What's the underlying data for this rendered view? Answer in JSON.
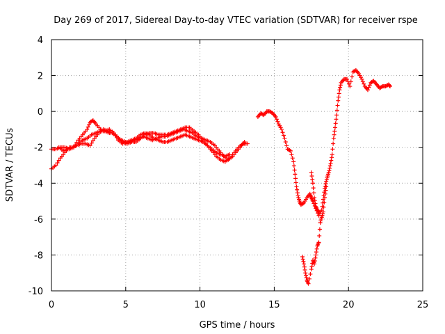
{
  "chart_data": {
    "type": "scatter",
    "title": "Day 269 of 2017, Sidereal Day-to-day VTEC variation (SDTVAR) for receiver rspe",
    "xlabel": "GPS time / hours",
    "ylabel": "SDTVAR / TECUs",
    "xlim": [
      0,
      25
    ],
    "ylim": [
      -10,
      4
    ],
    "xticks": [
      0,
      5,
      10,
      15,
      20,
      25
    ],
    "yticks": [
      -10,
      -8,
      -6,
      -4,
      -2,
      0,
      2,
      4
    ],
    "grid": true,
    "marker": "plus",
    "color": "#ff0000",
    "series": [
      {
        "segments": [
          [
            [
              0.0,
              -3.2
            ],
            [
              0.3,
              -3.0
            ],
            [
              0.6,
              -2.6
            ],
            [
              0.9,
              -2.3
            ],
            [
              1.2,
              -2.0
            ],
            [
              1.5,
              -2.0
            ],
            [
              1.8,
              -1.8
            ],
            [
              2.1,
              -1.6
            ],
            [
              2.4,
              -1.5
            ],
            [
              2.7,
              -1.3
            ],
            [
              3.0,
              -1.2
            ],
            [
              3.3,
              -1.1
            ],
            [
              3.6,
              -1.1
            ],
            [
              3.9,
              -1.2
            ],
            [
              4.2,
              -1.2
            ],
            [
              4.5,
              -1.5
            ],
            [
              4.8,
              -1.7
            ],
            [
              5.1,
              -1.8
            ],
            [
              5.4,
              -1.7
            ],
            [
              5.7,
              -1.7
            ],
            [
              6.0,
              -1.5
            ],
            [
              6.3,
              -1.3
            ],
            [
              6.6,
              -1.2
            ],
            [
              6.9,
              -1.2
            ],
            [
              7.2,
              -1.3
            ],
            [
              7.5,
              -1.3
            ],
            [
              7.8,
              -1.3
            ],
            [
              8.1,
              -1.2
            ],
            [
              8.4,
              -1.1
            ],
            [
              8.7,
              -1.0
            ],
            [
              9.0,
              -0.9
            ],
            [
              9.3,
              -0.9
            ],
            [
              9.6,
              -1.1
            ],
            [
              9.9,
              -1.3
            ],
            [
              10.2,
              -1.6
            ],
            [
              10.5,
              -1.9
            ],
            [
              10.8,
              -2.2
            ],
            [
              11.1,
              -2.5
            ],
            [
              11.4,
              -2.7
            ],
            [
              11.7,
              -2.8
            ],
            [
              12.0,
              -2.6
            ],
            [
              12.3,
              -2.3
            ],
            [
              12.6,
              -2.0
            ],
            [
              12.9,
              -1.8
            ],
            [
              13.2,
              -1.8
            ]
          ],
          [
            [
              0.0,
              -2.1
            ],
            [
              0.3,
              -2.1
            ],
            [
              0.6,
              -2.0
            ],
            [
              0.9,
              -2.0
            ],
            [
              1.2,
              -2.1
            ],
            [
              1.5,
              -2.0
            ],
            [
              1.8,
              -1.6
            ],
            [
              2.1,
              -1.3
            ],
            [
              2.4,
              -1.0
            ],
            [
              2.6,
              -0.6
            ],
            [
              2.8,
              -0.5
            ],
            [
              3.0,
              -0.7
            ],
            [
              3.3,
              -1.0
            ],
            [
              3.6,
              -1.1
            ],
            [
              3.9,
              -1.0
            ],
            [
              4.2,
              -1.2
            ],
            [
              4.5,
              -1.6
            ],
            [
              4.8,
              -1.8
            ],
            [
              5.1,
              -1.7
            ],
            [
              5.4,
              -1.6
            ],
            [
              5.7,
              -1.5
            ],
            [
              6.0,
              -1.3
            ],
            [
              6.3,
              -1.2
            ],
            [
              6.6,
              -1.3
            ],
            [
              6.9,
              -1.5
            ],
            [
              7.2,
              -1.6
            ],
            [
              7.5,
              -1.7
            ],
            [
              7.8,
              -1.7
            ],
            [
              8.1,
              -1.6
            ],
            [
              8.4,
              -1.5
            ],
            [
              8.7,
              -1.4
            ],
            [
              9.0,
              -1.3
            ],
            [
              9.3,
              -1.4
            ],
            [
              9.6,
              -1.5
            ],
            [
              9.9,
              -1.6
            ],
            [
              10.2,
              -1.7
            ],
            [
              10.5,
              -1.9
            ],
            [
              10.8,
              -2.1
            ],
            [
              11.1,
              -2.3
            ],
            [
              11.4,
              -2.4
            ],
            [
              11.7,
              -2.5
            ],
            [
              12.0,
              -2.4
            ]
          ],
          [
            [
              0.5,
              -2.0
            ],
            [
              0.8,
              -2.2
            ],
            [
              1.1,
              -2.1
            ],
            [
              1.4,
              -2.0
            ],
            [
              1.7,
              -1.9
            ],
            [
              2.0,
              -1.8
            ],
            [
              2.3,
              -1.8
            ],
            [
              2.6,
              -1.9
            ],
            [
              2.9,
              -1.5
            ],
            [
              3.2,
              -1.2
            ],
            [
              3.5,
              -1.0
            ],
            [
              3.8,
              -1.1
            ],
            [
              4.1,
              -1.2
            ],
            [
              4.4,
              -1.4
            ],
            [
              4.7,
              -1.6
            ],
            [
              5.0,
              -1.7
            ],
            [
              5.3,
              -1.7
            ],
            [
              5.6,
              -1.6
            ],
            [
              5.9,
              -1.5
            ],
            [
              6.2,
              -1.4
            ],
            [
              6.5,
              -1.5
            ],
            [
              6.8,
              -1.6
            ],
            [
              7.1,
              -1.5
            ],
            [
              7.4,
              -1.4
            ],
            [
              7.7,
              -1.4
            ],
            [
              8.0,
              -1.3
            ],
            [
              8.3,
              -1.2
            ],
            [
              8.6,
              -1.1
            ],
            [
              8.9,
              -1.0
            ],
            [
              9.2,
              -1.1
            ],
            [
              9.5,
              -1.2
            ],
            [
              9.8,
              -1.4
            ],
            [
              10.1,
              -1.5
            ],
            [
              10.4,
              -1.6
            ],
            [
              10.7,
              -1.7
            ],
            [
              11.0,
              -1.9
            ],
            [
              11.3,
              -2.2
            ],
            [
              11.6,
              -2.5
            ],
            [
              11.9,
              -2.7
            ],
            [
              12.2,
              -2.5
            ],
            [
              12.5,
              -2.2
            ],
            [
              12.8,
              -1.9
            ],
            [
              13.0,
              -1.7
            ]
          ],
          [
            [
              13.9,
              -0.3
            ],
            [
              14.1,
              -0.1
            ],
            [
              14.3,
              -0.2
            ],
            [
              14.5,
              0.0
            ],
            [
              14.7,
              0.0
            ],
            [
              14.9,
              -0.1
            ],
            [
              15.1,
              -0.3
            ],
            [
              15.3,
              -0.7
            ],
            [
              15.5,
              -1.0
            ],
            [
              15.7,
              -1.5
            ],
            [
              15.9,
              -2.1
            ],
            [
              16.1,
              -2.2
            ],
            [
              16.3,
              -2.8
            ],
            [
              16.4,
              -3.5
            ],
            [
              16.5,
              -4.2
            ],
            [
              16.6,
              -4.7
            ],
            [
              16.7,
              -5.0
            ],
            [
              16.8,
              -5.2
            ],
            [
              17.0,
              -5.1
            ],
            [
              17.2,
              -4.8
            ],
            [
              17.4,
              -4.6
            ],
            [
              17.5,
              -4.8
            ],
            [
              17.6,
              -5.0
            ],
            [
              17.8,
              -5.4
            ],
            [
              18.0,
              -5.8
            ],
            [
              18.2,
              -5.5
            ],
            [
              18.3,
              -4.9
            ],
            [
              18.4,
              -4.3
            ],
            [
              18.5,
              -3.9
            ],
            [
              18.6,
              -3.6
            ],
            [
              18.7,
              -3.3
            ],
            [
              18.8,
              -2.9
            ],
            [
              18.9,
              -2.4
            ],
            [
              19.0,
              -1.5
            ],
            [
              19.1,
              -0.9
            ],
            [
              19.2,
              -0.2
            ],
            [
              19.3,
              0.6
            ],
            [
              19.4,
              1.2
            ],
            [
              19.5,
              1.6
            ],
            [
              19.7,
              1.8
            ],
            [
              19.9,
              1.8
            ],
            [
              20.1,
              1.4
            ],
            [
              20.3,
              2.2
            ],
            [
              20.5,
              2.3
            ],
            [
              20.7,
              2.1
            ],
            [
              20.9,
              1.8
            ],
            [
              21.1,
              1.4
            ],
            [
              21.3,
              1.2
            ],
            [
              21.5,
              1.6
            ],
            [
              21.7,
              1.7
            ],
            [
              21.9,
              1.5
            ],
            [
              22.1,
              1.3
            ],
            [
              22.3,
              1.4
            ],
            [
              22.5,
              1.4
            ],
            [
              22.7,
              1.5
            ],
            [
              22.8,
              1.4
            ]
          ],
          [
            [
              16.9,
              -8.1
            ],
            [
              17.0,
              -8.5
            ],
            [
              17.1,
              -9.0
            ],
            [
              17.2,
              -9.4
            ],
            [
              17.3,
              -9.6
            ],
            [
              17.5,
              -8.8
            ],
            [
              17.6,
              -8.3
            ],
            [
              17.7,
              -8.5
            ],
            [
              17.8,
              -8.0
            ],
            [
              17.9,
              -7.5
            ],
            [
              18.0,
              -7.3
            ],
            [
              18.1,
              -6.2
            ],
            [
              18.2,
              -5.9
            ],
            [
              18.3,
              -5.6
            ],
            [
              18.4,
              -4.8
            ],
            [
              18.5,
              -4.2
            ]
          ],
          [
            [
              17.5,
              -3.4
            ],
            [
              17.6,
              -4.0
            ],
            [
              17.7,
              -4.8
            ],
            [
              17.8,
              -5.3
            ],
            [
              17.9,
              -5.5
            ],
            [
              18.0,
              -5.6
            ]
          ]
        ]
      }
    ]
  }
}
